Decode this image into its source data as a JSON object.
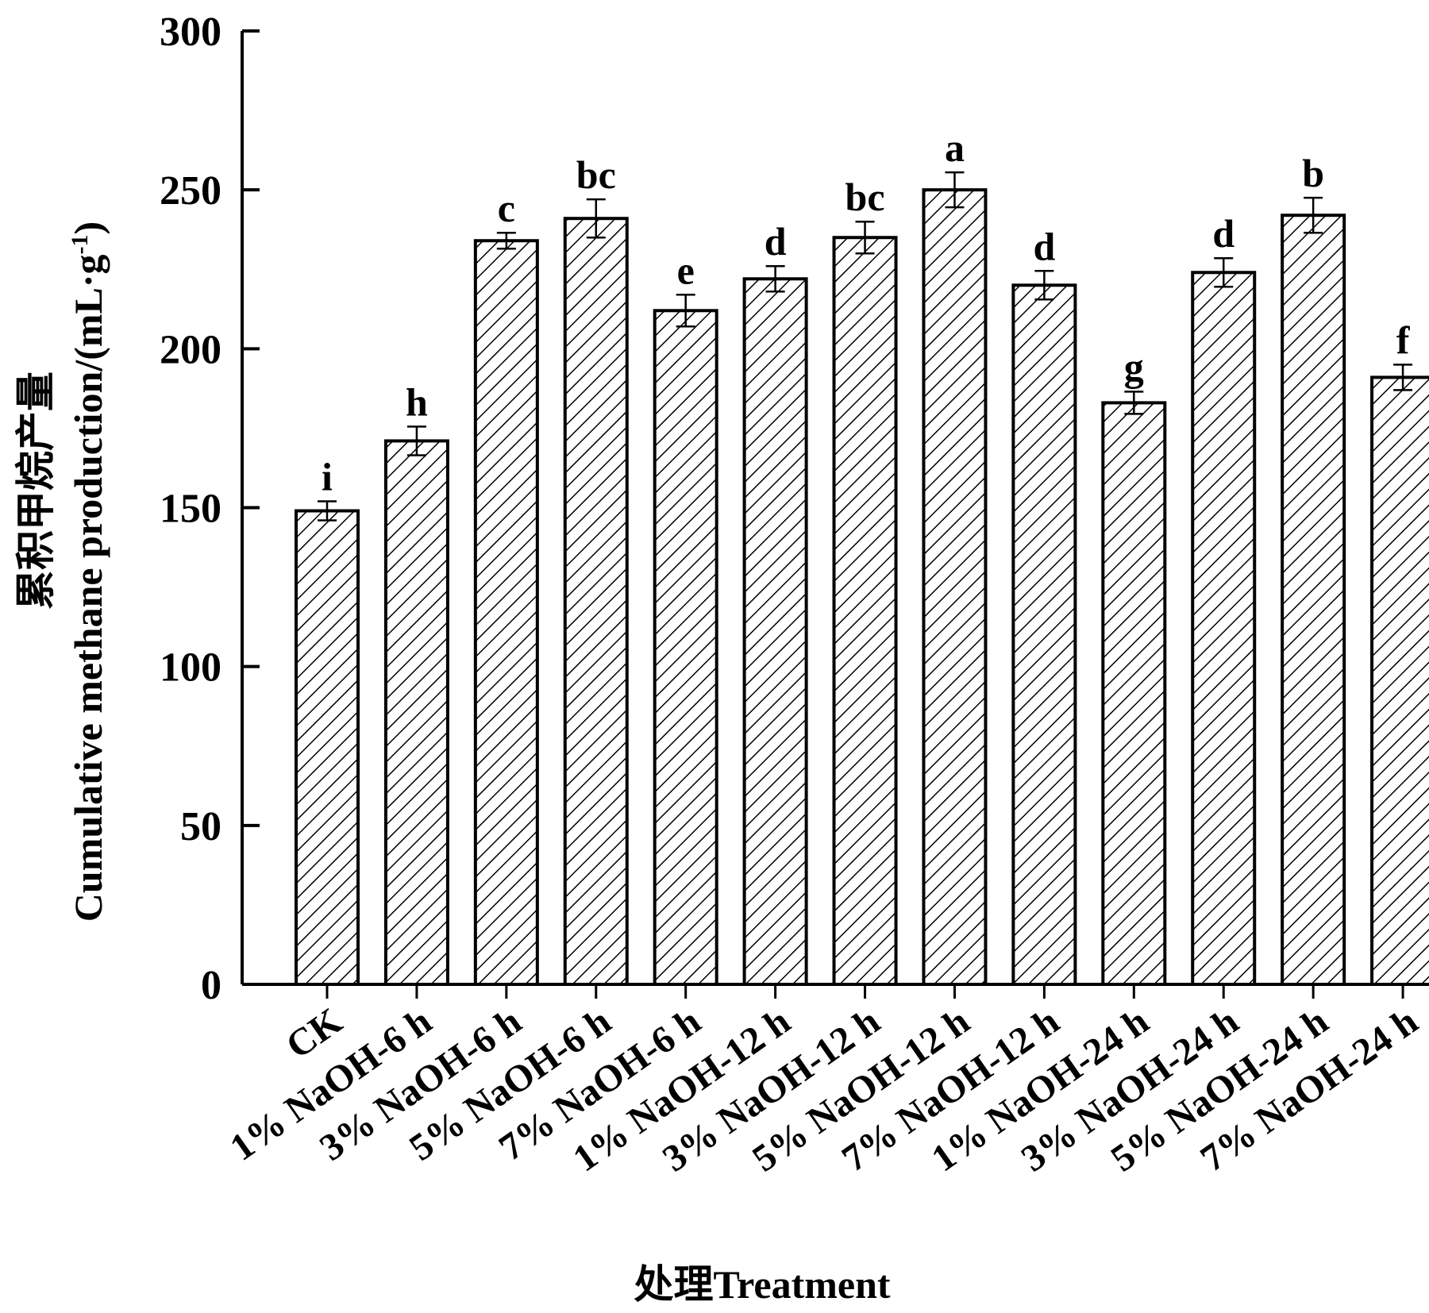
{
  "chart_data": {
    "type": "bar",
    "categories": [
      "CK",
      "1% NaOH-6 h",
      "3% NaOH-6 h",
      "5% NaOH-6 h",
      "7% NaOH-6 h",
      "1% NaOH-12 h",
      "3% NaOH-12 h",
      "5% NaOH-12 h",
      "7% NaOH-12 h",
      "1% NaOH-24 h",
      "3% NaOH-24 h",
      "5% NaOH-24 h",
      "7% NaOH-24 h"
    ],
    "values": [
      149,
      171,
      234,
      241,
      212,
      222,
      235,
      250,
      220,
      183,
      224,
      242,
      191
    ],
    "errors": [
      3,
      4.5,
      2.5,
      6,
      5,
      4,
      5,
      5.5,
      4.5,
      3.5,
      4.5,
      5.5,
      4
    ],
    "significance": [
      "i",
      "h",
      "c",
      "bc",
      "e",
      "d",
      "bc",
      "a",
      "d",
      "g",
      "d",
      "b",
      "f"
    ],
    "ylabel_cn": "累积甲烷产量",
    "ylabel_en_prefix": "Cumulative methane production/(mL·g",
    "ylabel_en_sup": "-1",
    "ylabel_en_suffix": ")",
    "xlabel": "处理Treatment",
    "ylim": [
      0,
      300
    ],
    "yticks": [
      0,
      50,
      100,
      150,
      200,
      250,
      300
    ],
    "bar_fill": "hatched-diagonal",
    "bar_color": "#000000",
    "grid": false,
    "legend": "none"
  }
}
